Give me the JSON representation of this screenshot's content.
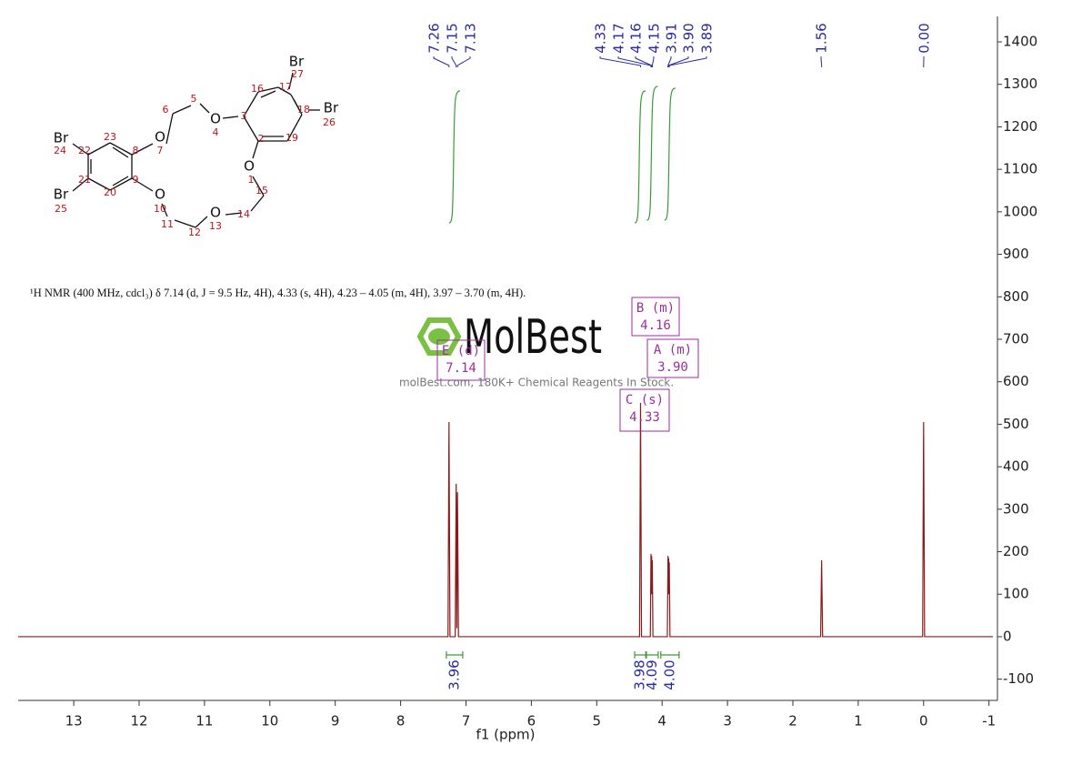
{
  "chart_data": {
    "type": "line",
    "xlabel": "f1 (ppm)",
    "xlim": [
      13.85,
      -1.06
    ],
    "xticks": [
      13,
      12,
      11,
      10,
      9,
      8,
      7,
      6,
      5,
      4,
      3,
      2,
      1,
      0,
      -1
    ],
    "ylim": [
      -150,
      1460
    ],
    "yticks": [
      -100,
      0,
      100,
      200,
      300,
      400,
      500,
      600,
      700,
      800,
      900,
      1000,
      1100,
      1200,
      1300,
      1400
    ],
    "series": [
      {
        "color": "#8b1a1a",
        "x": [
          13.85,
          7.275,
          7.26,
          7.245,
          7.165,
          7.15,
          7.14,
          7.13,
          7.115,
          4.345,
          4.33,
          4.315,
          4.18,
          4.17,
          4.165,
          4.16,
          4.155,
          4.15,
          4.14,
          3.92,
          3.91,
          3.905,
          3.9,
          3.895,
          3.89,
          3.88,
          1.575,
          1.56,
          1.545,
          0.015,
          0,
          -0.015,
          -1.06
        ],
        "values": [
          0,
          0,
          505,
          0,
          0,
          360,
          20,
          340,
          0,
          0,
          550,
          0,
          0,
          195,
          100,
          190,
          100,
          180,
          0,
          0,
          190,
          100,
          185,
          100,
          175,
          0,
          0,
          180,
          0,
          0,
          505,
          0,
          0
        ]
      }
    ],
    "peak_labels": [
      {
        "value": 7.26,
        "label": "7.26"
      },
      {
        "value": 7.15,
        "label": "7.15"
      },
      {
        "value": 7.13,
        "label": "7.13"
      },
      {
        "value": 4.33,
        "label": "4.33"
      },
      {
        "value": 4.17,
        "label": "4.17"
      },
      {
        "value": 4.16,
        "label": "4.16"
      },
      {
        "value": 4.15,
        "label": "4.15"
      },
      {
        "value": 3.91,
        "label": "3.91"
      },
      {
        "value": 3.9,
        "label": "3.90"
      },
      {
        "value": 3.89,
        "label": "3.89"
      },
      {
        "value": 1.56,
        "label": "1.56"
      },
      {
        "value": 0,
        "label": "0.00"
      }
    ],
    "integrals": [
      {
        "range": [
          7.3,
          7.05
        ],
        "label": "3.96"
      },
      {
        "range": [
          4.42,
          4.25
        ],
        "label": "3.98"
      },
      {
        "range": [
          4.24,
          4.06
        ],
        "label": "4.09"
      },
      {
        "range": [
          4.02,
          3.74
        ],
        "label": "4.00"
      }
    ],
    "multiplets": [
      {
        "name": "B (m)",
        "label": "4.16"
      },
      {
        "name": "A (m)",
        "label": "3.90"
      },
      {
        "name": "C (s)",
        "label": "4.33"
      },
      {
        "name": "E (d)",
        "label": "7.14"
      }
    ],
    "annotation": "¹H NMR (400 MHz, cdcl₃) δ 7.14 (d, J = 9.5 Hz, 4H), 4.33 (s, 4H), 4.23 – 4.05 (m, 4H), 3.97 – 3.70 (m, 4H).",
    "watermark": "MolBest",
    "watermark_subtitle": "molBest.com, 180K+ Chemical Reagents In Stock.",
    "structure_labels": [
      "Br",
      "27",
      "17",
      "16",
      "18",
      "Br",
      "26",
      "3",
      "O",
      "4",
      "5",
      "6",
      "2",
      "19",
      "O",
      "7",
      "23",
      "Br",
      "24",
      "22",
      "8",
      "O",
      "1",
      "21",
      "9",
      "Br",
      "25",
      "20",
      "O",
      "10",
      "15",
      "11",
      "O",
      "13",
      "14",
      "12"
    ]
  }
}
